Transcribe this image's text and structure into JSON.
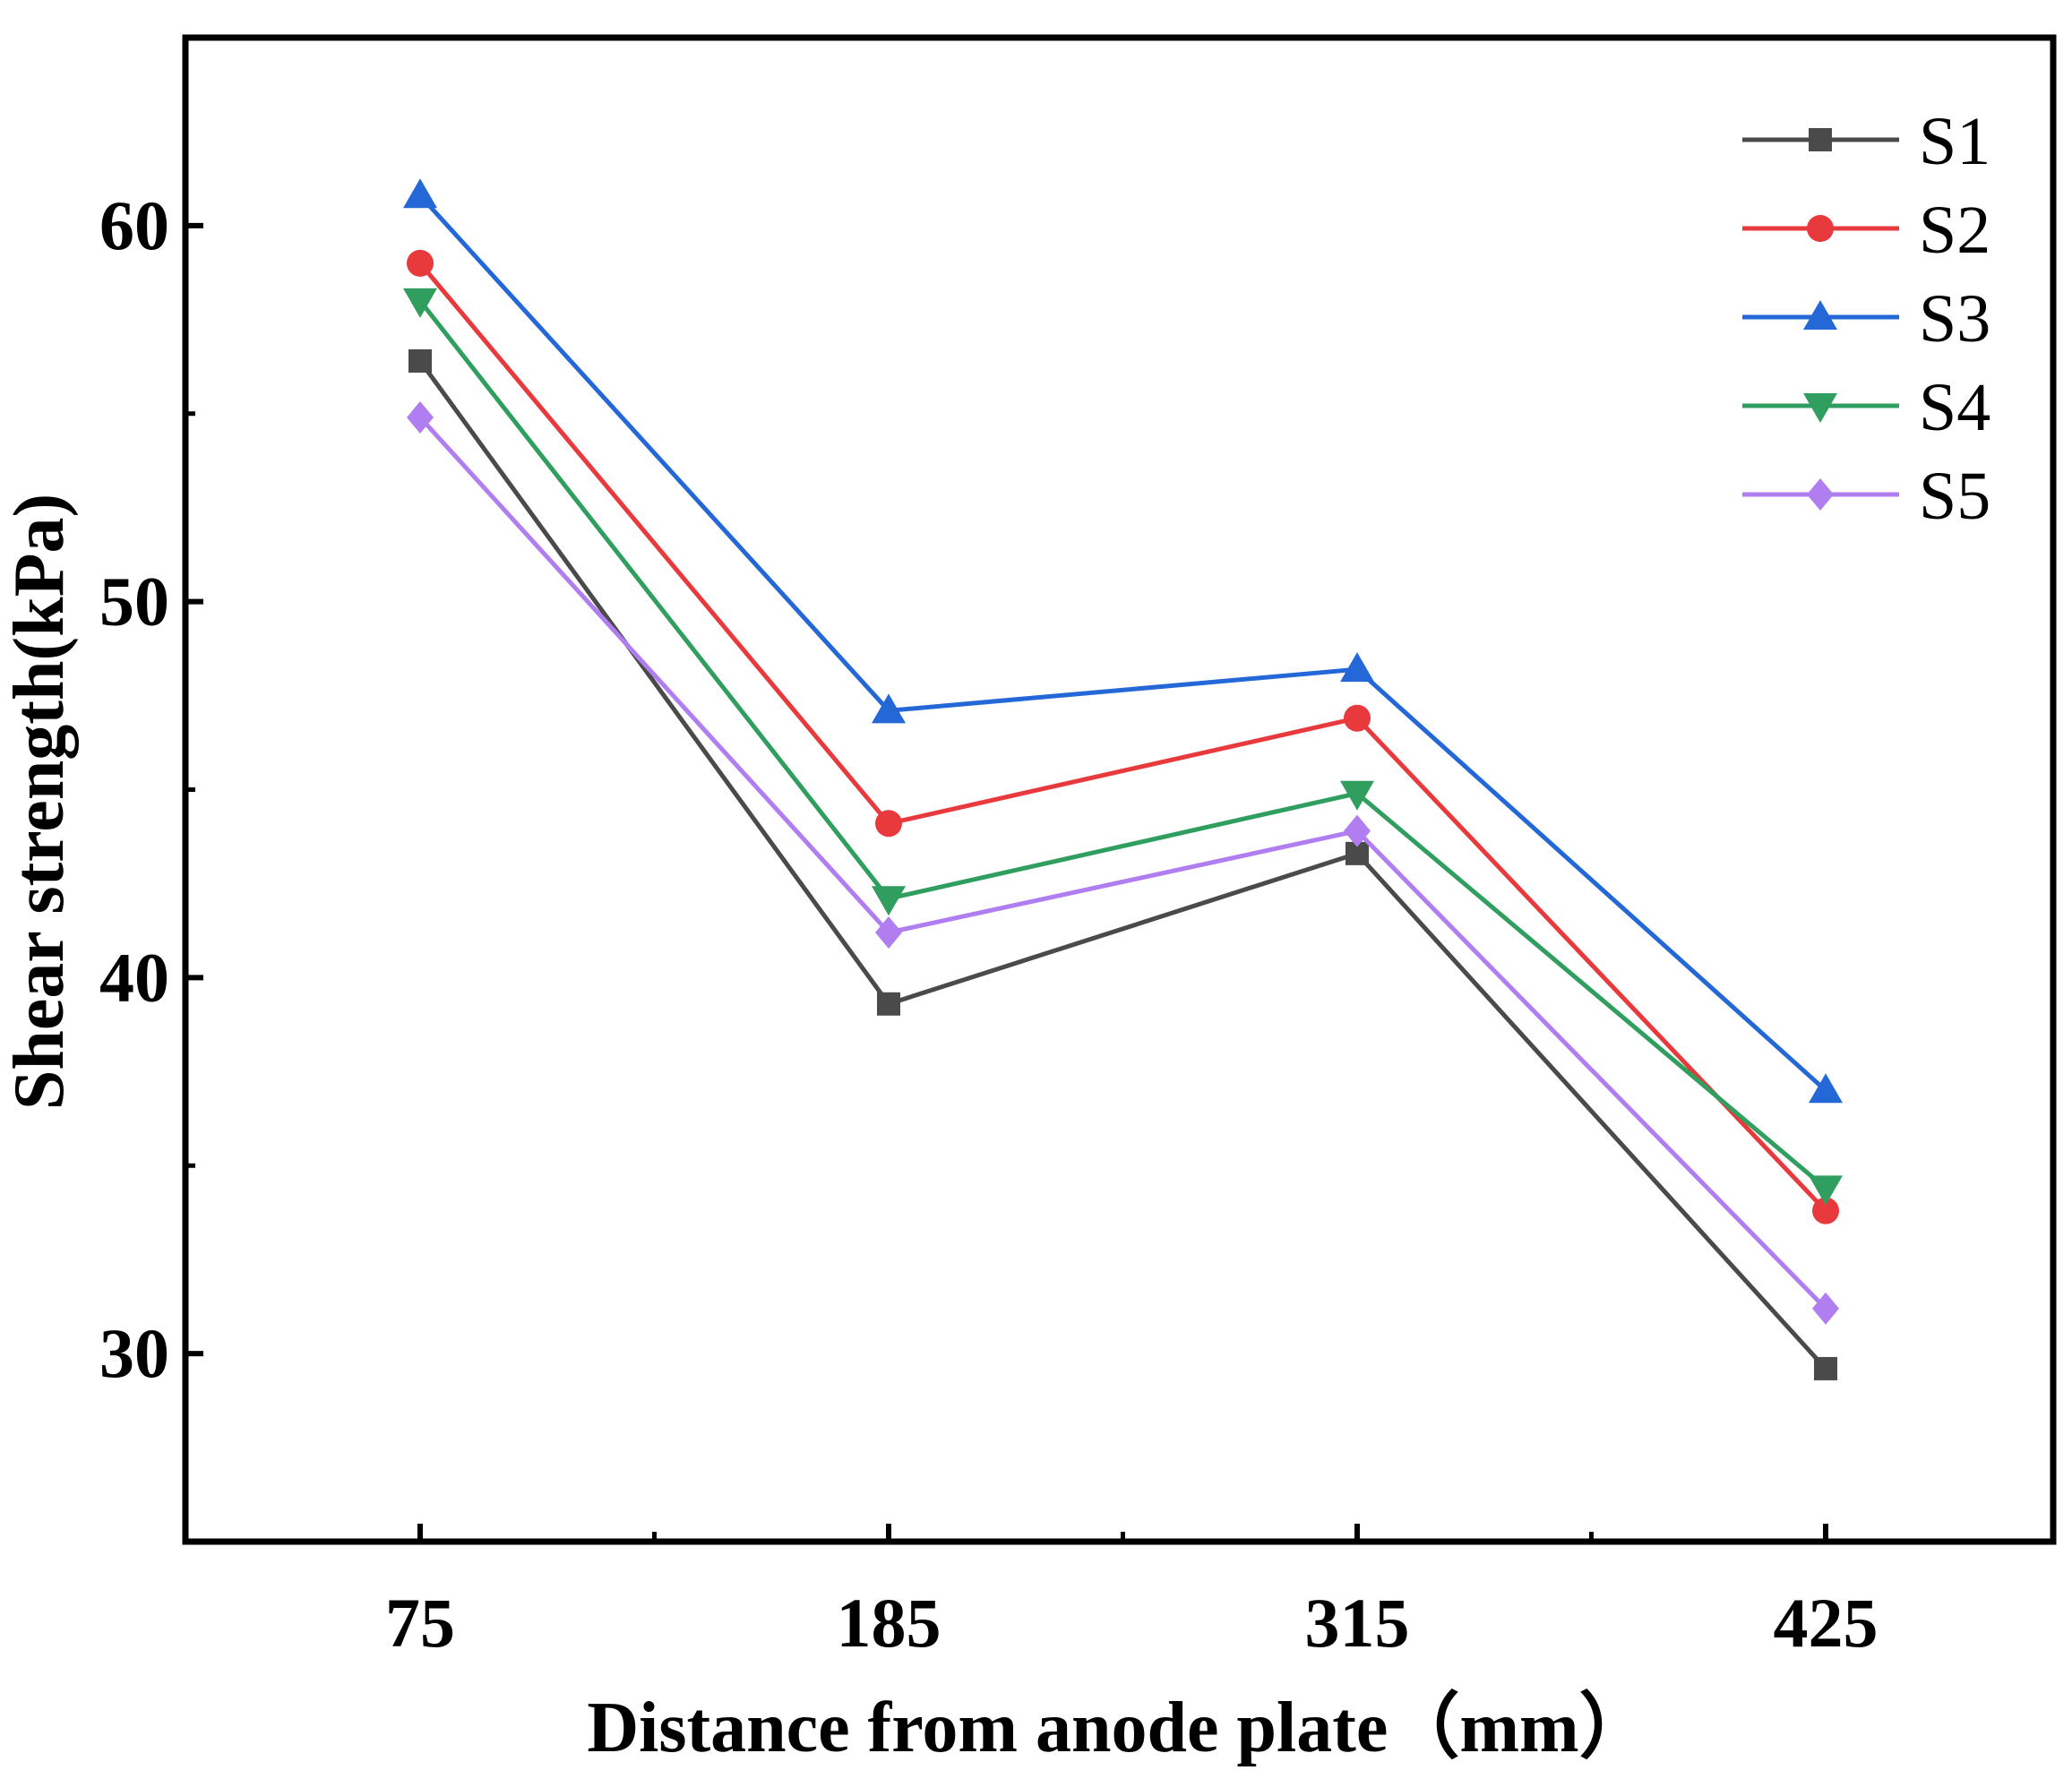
{
  "chart_data": {
    "type": "line",
    "title": "",
    "xlabel": "Distance from anode plate（mm）",
    "ylabel": "Shear strength(kPa)",
    "categories": [
      "75",
      "185",
      "315",
      "425"
    ],
    "ylim": [
      25,
      65
    ],
    "yticks": [
      "30",
      "40",
      "50",
      "60"
    ],
    "grid": false,
    "legend_position": "top-right",
    "series": [
      {
        "name": "S1",
        "marker": "square",
        "color": "#4a4a4a",
        "values": [
          56.4,
          39.3,
          43.3,
          29.6
        ]
      },
      {
        "name": "S2",
        "marker": "circle",
        "color": "#e8393c",
        "values": [
          59.0,
          44.1,
          46.9,
          33.8
        ]
      },
      {
        "name": "S3",
        "marker": "triangle-up",
        "color": "#2468d8",
        "values": [
          60.8,
          47.1,
          48.2,
          37.0
        ]
      },
      {
        "name": "S4",
        "marker": "triangle-down",
        "color": "#2f9e5f",
        "values": [
          58.0,
          42.1,
          44.9,
          34.4
        ]
      },
      {
        "name": "S5",
        "marker": "diamond",
        "color": "#b07ef0",
        "values": [
          54.9,
          41.2,
          43.9,
          31.2
        ]
      }
    ]
  }
}
